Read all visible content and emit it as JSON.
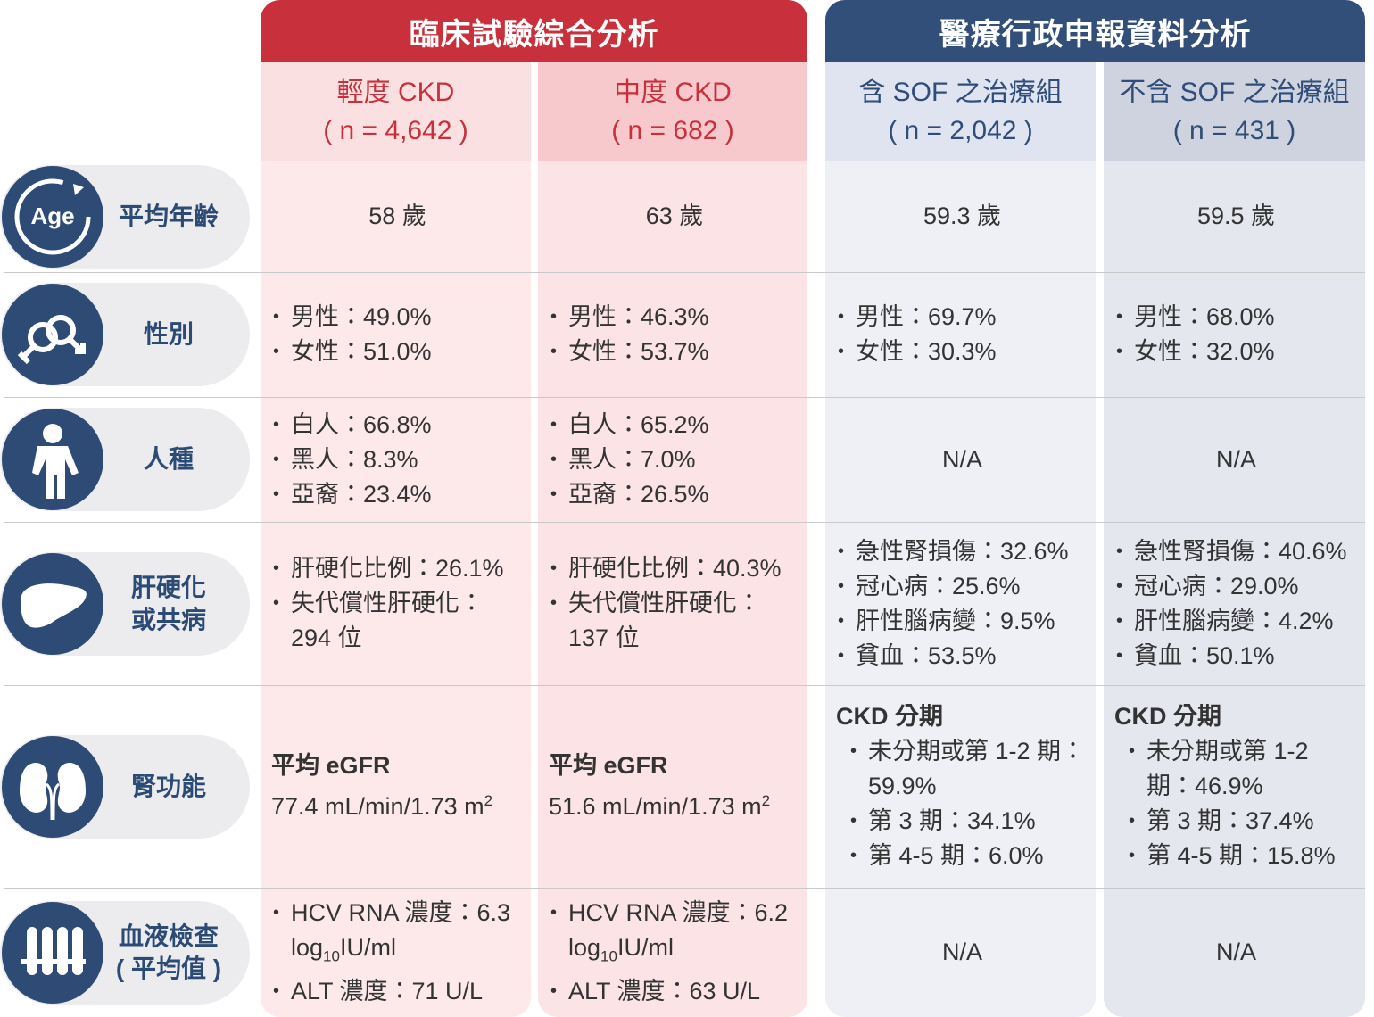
{
  "groups": [
    {
      "title": "臨床試驗綜合分析"
    },
    {
      "title": "醫療行政申報資料分析"
    }
  ],
  "columns": [
    {
      "name": "輕度 CKD",
      "n": "( n = 4,642 )"
    },
    {
      "name": "中度 CKD",
      "n": "( n = 682 )"
    },
    {
      "name": "含 SOF 之治療組",
      "n": "( n = 2,042 )"
    },
    {
      "name": "不含 SOF 之治療組",
      "n": "( n = 431 )"
    }
  ],
  "rows": [
    {
      "label": "平均年齡",
      "icon_text": "Age",
      "cells": [
        "58 歲",
        "63 歲",
        "59.3 歲",
        "59.5 歲"
      ]
    },
    {
      "label": "性別",
      "cells": [
        [
          "男性：49.0%",
          "女性：51.0%"
        ],
        [
          "男性：46.3%",
          "女性：53.7%"
        ],
        [
          "男性：69.7%",
          "女性：30.3%"
        ],
        [
          "男性：68.0%",
          "女性：32.0%"
        ]
      ]
    },
    {
      "label": "人種",
      "cells": [
        [
          "白人：66.8%",
          "黑人：8.3%",
          "亞裔：23.4%"
        ],
        [
          "白人：65.2%",
          "黑人：7.0%",
          "亞裔：26.5%"
        ],
        "N/A",
        "N/A"
      ]
    },
    {
      "label": "肝硬化或共病",
      "cells": [
        [
          "肝硬化比例：26.1%",
          "失代償性肝硬化：294 位"
        ],
        [
          "肝硬化比例：40.3%",
          "失代償性肝硬化：137 位"
        ],
        [
          "急性腎損傷：32.6%",
          "冠心病：25.6%",
          "肝性腦病變：9.5%",
          "貧血：53.5%"
        ],
        [
          "急性腎損傷：40.6%",
          "冠心病：29.0%",
          "肝性腦病變：4.2%",
          "貧血：50.1%"
        ]
      ]
    },
    {
      "label": "腎功能",
      "cells": [
        {
          "heading": "平均 eGFR",
          "text": "77.4 mL/min/1.73 m",
          "sup": "2"
        },
        {
          "heading": "平均 eGFR",
          "text": "51.6 mL/min/1.73 m",
          "sup": "2"
        },
        {
          "heading": "CKD 分期",
          "items": [
            "未分期或第 1-2 期：59.9%",
            "第 3 期：34.1%",
            "第 4-5 期：6.0%"
          ]
        },
        {
          "heading": "CKD 分期",
          "items": [
            "未分期或第 1-2 期：46.9%",
            "第 3 期：37.4%",
            "第 4-5 期：15.8%"
          ]
        }
      ]
    },
    {
      "label": "血液檢查",
      "note": "( 平均值 )",
      "cells": [
        [
          [
            "HCV RNA 濃度：6.3 log",
            "10",
            "IU/ml"
          ],
          "ALT 濃度：71 U/L"
        ],
        [
          [
            "HCV RNA 濃度：6.2 log",
            "10",
            "IU/ml"
          ],
          "ALT 濃度：63 U/L"
        ],
        "N/A",
        "N/A"
      ]
    }
  ]
}
